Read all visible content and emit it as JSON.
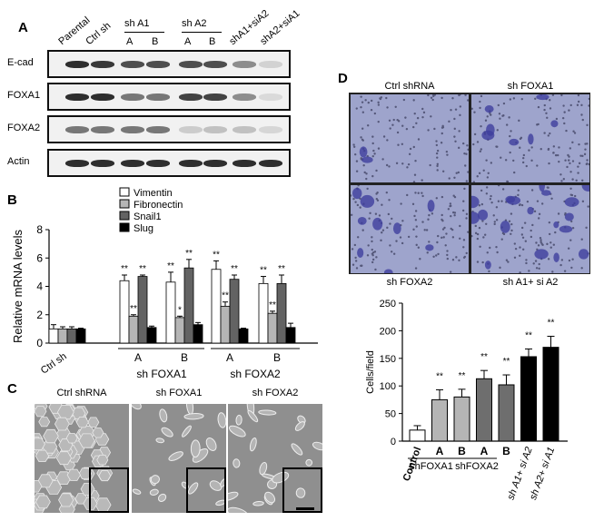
{
  "panels": {
    "A": "A",
    "B": "B",
    "C": "C",
    "D": "D"
  },
  "blot": {
    "lanes": [
      "Parental",
      "Ctrl sh",
      "A",
      "B",
      "A",
      "B",
      "shA1+siA2",
      "shA2+siA1"
    ],
    "group_labels": [
      "sh A1",
      "sh A2"
    ],
    "rows": [
      {
        "label": "E-cad",
        "intensity": [
          0.9,
          0.85,
          0.75,
          0.75,
          0.75,
          0.75,
          0.45,
          0.12
        ]
      },
      {
        "label": "FOXA1",
        "intensity": [
          0.9,
          0.9,
          0.55,
          0.55,
          0.8,
          0.8,
          0.45,
          0.08
        ]
      },
      {
        "label": "FOXA2",
        "intensity": [
          0.55,
          0.55,
          0.55,
          0.55,
          0.15,
          0.2,
          0.2,
          0.1
        ]
      },
      {
        "label": "Actin",
        "intensity": [
          0.9,
          0.9,
          0.9,
          0.9,
          0.9,
          0.9,
          0.9,
          0.9
        ]
      }
    ]
  },
  "chart_data": [
    {
      "type": "bar",
      "ylabel": "Relative mRNA levels",
      "ylim": [
        0,
        8
      ],
      "yticks": [
        0,
        2,
        4,
        6,
        8
      ],
      "legend_placement": "top",
      "categories": [
        "Ctrl sh",
        "A",
        "B",
        "A",
        "B"
      ],
      "group_labels": [
        "sh FOXA1",
        "sh FOXA2"
      ],
      "series": [
        {
          "name": "Vimentin",
          "color": "#ffffff",
          "values": [
            1.0,
            4.4,
            4.3,
            5.2,
            4.2
          ],
          "errors": [
            0.3,
            0.4,
            0.7,
            0.6,
            0.5
          ],
          "sig": [
            "",
            "**",
            "**",
            "**",
            "**"
          ]
        },
        {
          "name": "Fibronectin",
          "color": "#b5b5b5",
          "values": [
            1.0,
            1.9,
            1.8,
            2.6,
            2.1
          ],
          "errors": [
            0.15,
            0.1,
            0.1,
            0.3,
            0.15
          ],
          "sig": [
            "",
            "**",
            "*",
            "**",
            "**"
          ]
        },
        {
          "name": "Snail1",
          "color": "#636363",
          "values": [
            1.0,
            4.7,
            5.3,
            4.5,
            4.2
          ],
          "errors": [
            0.15,
            0.1,
            0.6,
            0.3,
            0.6
          ],
          "sig": [
            "",
            "**",
            "**",
            "**",
            "**"
          ]
        },
        {
          "name": "Slug",
          "color": "#000000",
          "values": [
            1.0,
            1.1,
            1.3,
            1.0,
            1.1
          ],
          "errors": [
            0.05,
            0.1,
            0.15,
            0.05,
            0.3
          ],
          "sig": [
            "",
            "",
            "",
            "",
            ""
          ]
        }
      ]
    },
    {
      "type": "bar",
      "ylabel": "Cells/field",
      "ylim": [
        0,
        250
      ],
      "yticks": [
        0,
        50,
        100,
        150,
        200,
        250
      ],
      "categories": [
        "Control",
        "A",
        "B",
        "A",
        "B",
        "sh A1+ si A2",
        "sh A2+ si A1"
      ],
      "group_labels": [
        "shFOXA1",
        "shFOXA2"
      ],
      "values": [
        20,
        75,
        80,
        113,
        102,
        153,
        170
      ],
      "errors": [
        8,
        18,
        14,
        15,
        18,
        14,
        20
      ],
      "colors": [
        "#ffffff",
        "#b5b5b5",
        "#b5b5b5",
        "#6e6e6e",
        "#6e6e6e",
        "#000000",
        "#000000"
      ],
      "sig": [
        "",
        "**",
        "**",
        "**",
        "**",
        "**",
        "**"
      ]
    }
  ],
  "micrographs": {
    "labels": [
      "Ctrl shRNA",
      "sh FOXA1",
      "sh FOXA2"
    ]
  },
  "invasion": {
    "labels": [
      "Ctrl shRNA",
      "sh FOXA1",
      "sh FOXA2",
      "sh A1+ si A2"
    ]
  }
}
